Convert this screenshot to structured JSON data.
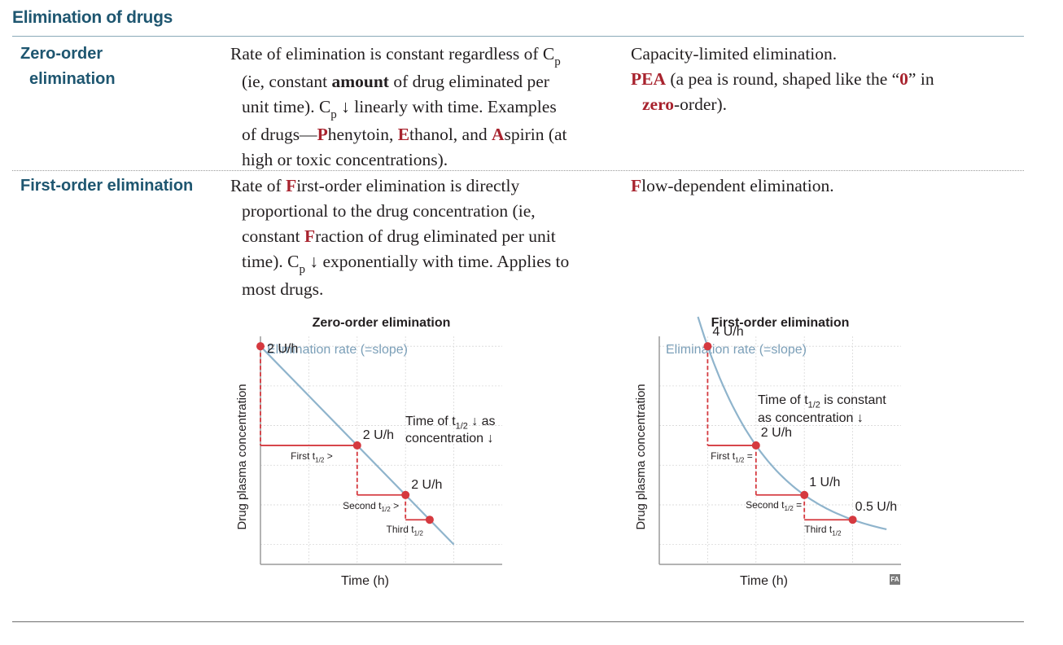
{
  "section_title": "Elimination of drugs",
  "rows": [
    {
      "term_line1": "Zero-order",
      "term_line2": "elimination",
      "desc": {
        "l1a": "Rate of elimination is constant regardless of C",
        "l1sub": "p",
        "l2a": "(ie, constant ",
        "l2b": "amount",
        "l2c": " of drug eliminated per",
        "l3a": "unit time). C",
        "l3sub": "p",
        "l3b": " ↓ linearly with time. Examples",
        "l4a": "of drugs—",
        "l4r1": "P",
        "l4b": "henytoin, ",
        "l4r2": "E",
        "l4c": "thanol, and ",
        "l4r3": "A",
        "l4d": "spirin (at",
        "l5": "high or toxic concentrations)."
      },
      "note": {
        "l1": "Capacity-limited elimination.",
        "l2r": "PEA",
        "l2a": " (a pea is round, shaped like the “",
        "l2r2": "0",
        "l2b": "” in",
        "l3r": "zero",
        "l3a": "-order)."
      }
    },
    {
      "term_line1": "First-order elimination",
      "desc": {
        "l1a": "Rate of ",
        "l1r": "F",
        "l1b": "irst-order elimination is directly",
        "l2": "proportional to the drug concentration (ie,",
        "l3a": "constant ",
        "l3r": "F",
        "l3b": "raction of drug eliminated per unit",
        "l4a": "time). C",
        "l4sub": "p",
        "l4b": " ↓ exponentially with time. Applies to",
        "l5": "most drugs."
      },
      "note": {
        "l1r": "F",
        "l1a": "low-dependent elimination."
      }
    }
  ],
  "chart_data": [
    {
      "type": "line",
      "title": "Zero-order elimination",
      "xlabel": "Time (h)",
      "ylabel": "Drug plasma concentration",
      "series_label": "Elimination rate (=slope)",
      "annotation_line1": "Time of t",
      "annotation_sub": "1/2",
      "annotation_line1b": " ↓ as",
      "annotation_line2": "concentration ↓",
      "points": [
        {
          "t": 0,
          "c": 100,
          "label": "2 U/h"
        },
        {
          "t": 2,
          "c": 50,
          "label": "2 U/h"
        },
        {
          "t": 3,
          "c": 25,
          "label": "2 U/h"
        },
        {
          "t": 3.5,
          "c": 12.5,
          "label": ""
        }
      ],
      "line_end": {
        "t": 4,
        "c": 0
      },
      "half_lives": [
        {
          "prefix": "First t",
          "sub": "1/2",
          "suffix": " >"
        },
        {
          "prefix": "Second t",
          "sub": "1/2",
          "suffix": " >"
        },
        {
          "prefix": "Third t",
          "sub": "1/2",
          "suffix": ""
        }
      ],
      "xlim": [
        0,
        5
      ],
      "ylim": [
        -10,
        105
      ],
      "grid": true
    },
    {
      "type": "line",
      "title": "First-order elimination",
      "xlabel": "Time (h)",
      "ylabel": "Drug plasma concentration",
      "series_label": "Elimination rate (=slope)",
      "annotation_line1": "Time of t",
      "annotation_sub": "1/2",
      "annotation_line1b": " is constant",
      "annotation_line2": "as concentration ↓",
      "points": [
        {
          "t": 1,
          "c": 100,
          "label": "4 U/h"
        },
        {
          "t": 2,
          "c": 50,
          "label": "2 U/h"
        },
        {
          "t": 3,
          "c": 25,
          "label": "1 U/h"
        },
        {
          "t": 4,
          "c": 12.5,
          "label": "0.5 U/h"
        }
      ],
      "curve": {
        "t_start": 0.8,
        "t_end": 4.7
      },
      "half_lives": [
        {
          "prefix": "First t",
          "sub": "1/2",
          "suffix": " ="
        },
        {
          "prefix": "Second t",
          "sub": "1/2",
          "suffix": " ="
        },
        {
          "prefix": "Third t",
          "sub": "1/2",
          "suffix": ""
        }
      ],
      "xlim": [
        0,
        5
      ],
      "ylim": [
        -10,
        105
      ],
      "grid": true
    }
  ],
  "logo_text": "FA",
  "colors": {
    "heading": "#1e5670",
    "accent_red": "#a8232e",
    "curve": "#8fb4cc",
    "marker": "#d5393f",
    "axis": "#9a9a9a",
    "grid": "#d8d8d8"
  }
}
